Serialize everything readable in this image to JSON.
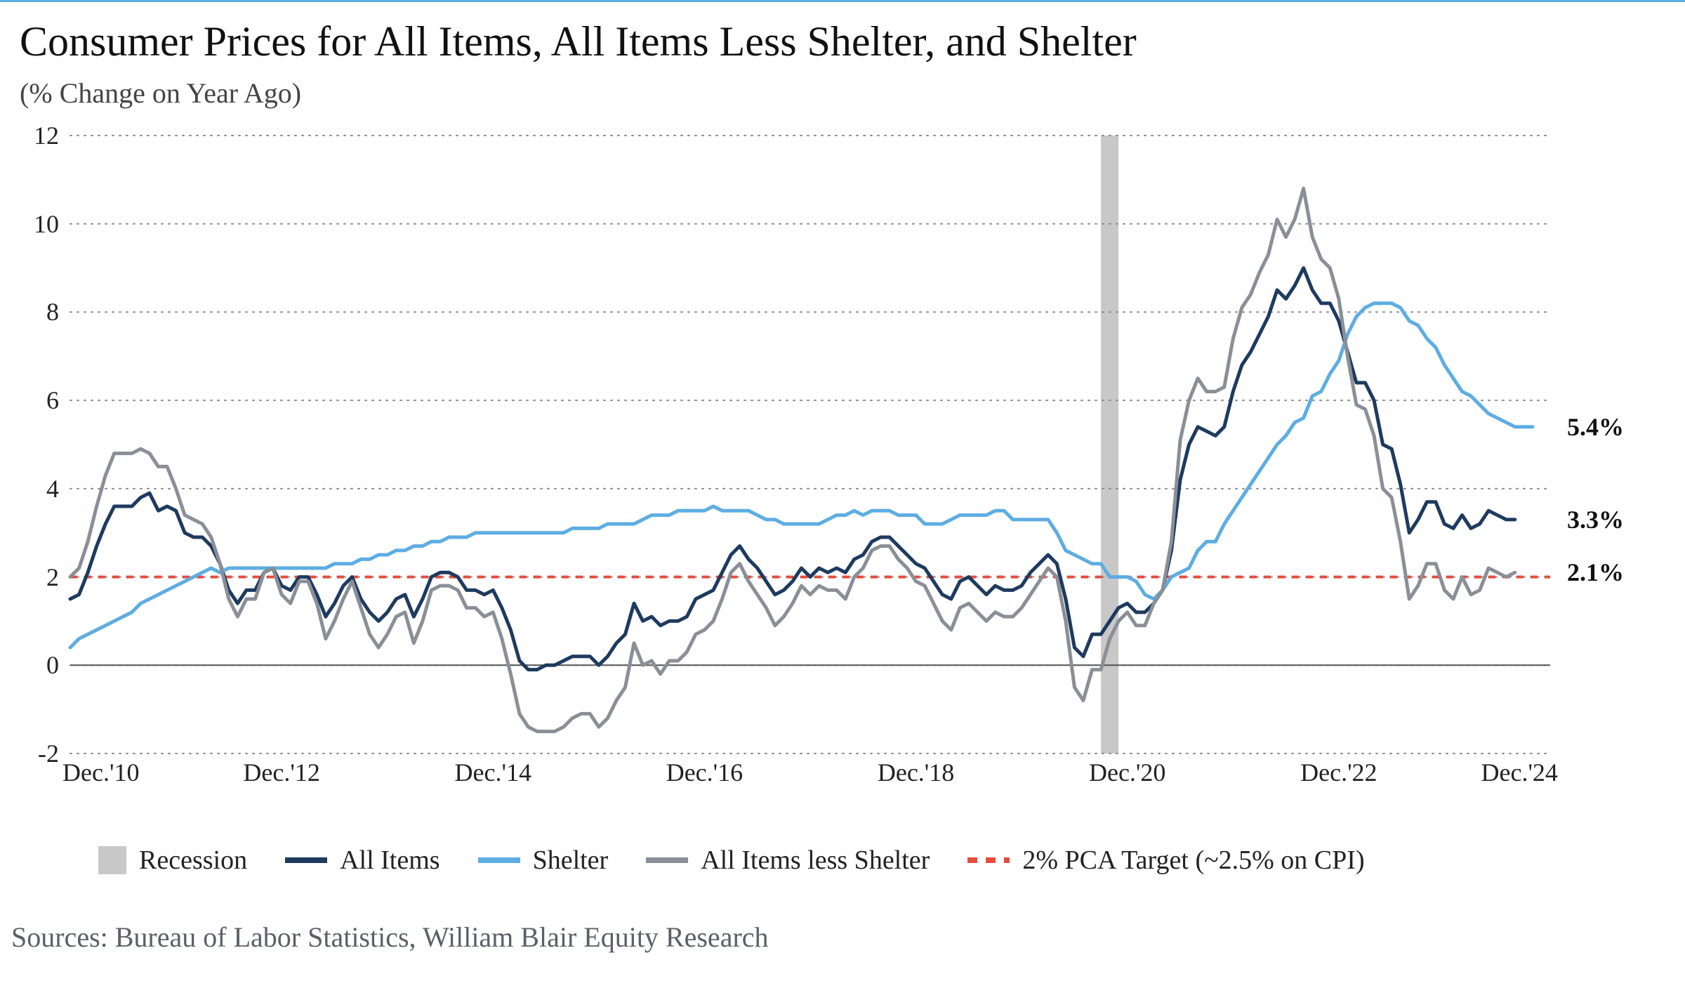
{
  "title": "Consumer Prices for All Items, All Items Less Shelter, and Shelter",
  "subtitle": "(% Change on Year Ago)",
  "sources": "Sources: Bureau of Labor Statistics, William Blair Equity Research",
  "chart": {
    "type": "line",
    "background_color": "#ffffff",
    "top_border_color": "#5dade2",
    "grid_color": "#888888",
    "grid_dash": "2,8",
    "axis_color": "#555555",
    "tick_fontsize": 36,
    "title_fontsize": 60,
    "subtitle_fontsize": 40,
    "sources_fontsize": 40,
    "label_fontsize": 36,
    "line_width": 5,
    "ylim": [
      -2,
      12
    ],
    "yticks": [
      -2,
      0,
      2,
      4,
      6,
      8,
      10,
      12
    ],
    "x_start_month": 0,
    "x_end_month": 168,
    "xticks": [
      {
        "month": 0,
        "label": "Dec.'10"
      },
      {
        "month": 24,
        "label": "Dec.'12"
      },
      {
        "month": 48,
        "label": "Dec.'14"
      },
      {
        "month": 72,
        "label": "Dec.'16"
      },
      {
        "month": 96,
        "label": "Dec.'18"
      },
      {
        "month": 120,
        "label": "Dec.'20"
      },
      {
        "month": 144,
        "label": "Dec.'22"
      },
      {
        "month": 168,
        "label": "Dec.'24"
      }
    ],
    "target_line": {
      "value": 2,
      "color": "#e74c3c",
      "dash": "10,10"
    },
    "recession": {
      "start_month": 117,
      "end_month": 119,
      "color": "#c8c8c8"
    },
    "end_labels": [
      {
        "value": 5.4,
        "text": "5.4%"
      },
      {
        "value": 3.3,
        "text": "3.3%"
      },
      {
        "value": 2.1,
        "text": "2.1%"
      }
    ],
    "series": [
      {
        "name": "all_items",
        "color": "#1e3a5f",
        "data": [
          1.5,
          1.6,
          2.1,
          2.7,
          3.2,
          3.6,
          3.6,
          3.6,
          3.8,
          3.9,
          3.5,
          3.6,
          3.5,
          3.0,
          2.9,
          2.9,
          2.7,
          2.3,
          1.7,
          1.4,
          1.7,
          1.7,
          2.1,
          2.2,
          1.8,
          1.7,
          2.0,
          2.0,
          1.6,
          1.1,
          1.4,
          1.8,
          2.0,
          1.5,
          1.2,
          1.0,
          1.2,
          1.5,
          1.6,
          1.1,
          1.5,
          2.0,
          2.1,
          2.1,
          2.0,
          1.7,
          1.7,
          1.6,
          1.7,
          1.3,
          0.8,
          0.1,
          -0.1,
          -0.1,
          0.0,
          0.0,
          0.1,
          0.2,
          0.2,
          0.2,
          0.0,
          0.2,
          0.5,
          0.7,
          1.4,
          1.0,
          1.1,
          0.9,
          1.0,
          1.0,
          1.1,
          1.5,
          1.6,
          1.7,
          2.1,
          2.5,
          2.7,
          2.4,
          2.2,
          1.9,
          1.6,
          1.7,
          1.9,
          2.2,
          2.0,
          2.2,
          2.1,
          2.2,
          2.1,
          2.4,
          2.5,
          2.8,
          2.9,
          2.9,
          2.7,
          2.5,
          2.3,
          2.2,
          1.9,
          1.6,
          1.5,
          1.9,
          2.0,
          1.8,
          1.6,
          1.8,
          1.7,
          1.7,
          1.8,
          2.1,
          2.3,
          2.5,
          2.3,
          1.5,
          0.4,
          0.2,
          0.7,
          0.7,
          1.0,
          1.3,
          1.4,
          1.2,
          1.2,
          1.4,
          1.7,
          2.6,
          4.2,
          5.0,
          5.4,
          5.3,
          5.2,
          5.4,
          6.2,
          6.8,
          7.1,
          7.5,
          7.9,
          8.5,
          8.3,
          8.6,
          9.0,
          8.5,
          8.2,
          8.2,
          7.8,
          7.1,
          6.4,
          6.4,
          6.0,
          5.0,
          4.9,
          4.1,
          3.0,
          3.3,
          3.7,
          3.7,
          3.2,
          3.1,
          3.4,
          3.1,
          3.2,
          3.5,
          3.4,
          3.3,
          3.3
        ]
      },
      {
        "name": "shelter",
        "color": "#5dade2",
        "data": [
          0.4,
          0.6,
          0.7,
          0.8,
          0.9,
          1.0,
          1.1,
          1.2,
          1.4,
          1.5,
          1.6,
          1.7,
          1.8,
          1.9,
          2.0,
          2.1,
          2.2,
          2.1,
          2.2,
          2.2,
          2.2,
          2.2,
          2.2,
          2.2,
          2.2,
          2.2,
          2.2,
          2.2,
          2.2,
          2.2,
          2.3,
          2.3,
          2.3,
          2.4,
          2.4,
          2.5,
          2.5,
          2.6,
          2.6,
          2.7,
          2.7,
          2.8,
          2.8,
          2.9,
          2.9,
          2.9,
          3.0,
          3.0,
          3.0,
          3.0,
          3.0,
          3.0,
          3.0,
          3.0,
          3.0,
          3.0,
          3.0,
          3.1,
          3.1,
          3.1,
          3.1,
          3.2,
          3.2,
          3.2,
          3.2,
          3.3,
          3.4,
          3.4,
          3.4,
          3.5,
          3.5,
          3.5,
          3.5,
          3.6,
          3.5,
          3.5,
          3.5,
          3.5,
          3.4,
          3.3,
          3.3,
          3.2,
          3.2,
          3.2,
          3.2,
          3.2,
          3.3,
          3.4,
          3.4,
          3.5,
          3.4,
          3.5,
          3.5,
          3.5,
          3.4,
          3.4,
          3.4,
          3.2,
          3.2,
          3.2,
          3.3,
          3.4,
          3.4,
          3.4,
          3.4,
          3.5,
          3.5,
          3.3,
          3.3,
          3.3,
          3.3,
          3.3,
          3.0,
          2.6,
          2.5,
          2.4,
          2.3,
          2.3,
          2.0,
          2.0,
          2.0,
          1.9,
          1.6,
          1.5,
          1.7,
          2.0,
          2.1,
          2.2,
          2.6,
          2.8,
          2.8,
          3.2,
          3.5,
          3.8,
          4.1,
          4.4,
          4.7,
          5.0,
          5.2,
          5.5,
          5.6,
          6.1,
          6.2,
          6.6,
          6.9,
          7.5,
          7.9,
          8.1,
          8.2,
          8.2,
          8.2,
          8.1,
          7.8,
          7.7,
          7.4,
          7.2,
          6.8,
          6.5,
          6.2,
          6.1,
          5.9,
          5.7,
          5.6,
          5.5,
          5.4,
          5.4,
          5.4
        ]
      },
      {
        "name": "all_items_less_shelter",
        "color": "#8a8f97",
        "data": [
          2.0,
          2.2,
          2.8,
          3.6,
          4.3,
          4.8,
          4.8,
          4.8,
          4.9,
          4.8,
          4.5,
          4.5,
          4.0,
          3.4,
          3.3,
          3.2,
          2.9,
          2.3,
          1.5,
          1.1,
          1.5,
          1.5,
          2.1,
          2.2,
          1.6,
          1.4,
          1.9,
          1.9,
          1.4,
          0.6,
          1.0,
          1.5,
          1.9,
          1.3,
          0.7,
          0.4,
          0.7,
          1.1,
          1.2,
          0.5,
          1.0,
          1.7,
          1.8,
          1.8,
          1.7,
          1.3,
          1.3,
          1.1,
          1.2,
          0.6,
          -0.2,
          -1.1,
          -1.4,
          -1.5,
          -1.5,
          -1.5,
          -1.4,
          -1.2,
          -1.1,
          -1.1,
          -1.4,
          -1.2,
          -0.8,
          -0.5,
          0.5,
          0.0,
          0.1,
          -0.2,
          0.1,
          0.1,
          0.3,
          0.7,
          0.8,
          1.0,
          1.5,
          2.1,
          2.3,
          1.9,
          1.6,
          1.3,
          0.9,
          1.1,
          1.4,
          1.8,
          1.6,
          1.8,
          1.7,
          1.7,
          1.5,
          2.0,
          2.2,
          2.6,
          2.7,
          2.7,
          2.4,
          2.2,
          1.9,
          1.8,
          1.4,
          1.0,
          0.8,
          1.3,
          1.4,
          1.2,
          1.0,
          1.2,
          1.1,
          1.1,
          1.3,
          1.6,
          1.9,
          2.2,
          2.0,
          1.0,
          -0.5,
          -0.8,
          -0.1,
          -0.1,
          0.6,
          1.0,
          1.2,
          0.9,
          0.9,
          1.4,
          1.7,
          2.8,
          5.1,
          6.0,
          6.5,
          6.2,
          6.2,
          6.3,
          7.4,
          8.1,
          8.4,
          8.9,
          9.3,
          10.1,
          9.7,
          10.1,
          10.8,
          9.7,
          9.2,
          9.0,
          8.3,
          7.0,
          5.9,
          5.8,
          5.2,
          4.0,
          3.8,
          2.8,
          1.5,
          1.8,
          2.3,
          2.3,
          1.7,
          1.5,
          2.0,
          1.6,
          1.7,
          2.2,
          2.1,
          2.0,
          2.1
        ]
      }
    ],
    "legend": [
      {
        "label": "Recession",
        "type": "rect",
        "color": "#c8c8c8"
      },
      {
        "label": "All Items",
        "type": "line",
        "color": "#1e3a5f"
      },
      {
        "label": "Shelter",
        "type": "line",
        "color": "#5dade2"
      },
      {
        "label": "All Items less Shelter",
        "type": "line",
        "color": "#8a8f97"
      },
      {
        "label": "2% PCA Target (~2.5% on CPI)",
        "type": "dash",
        "color": "#e74c3c"
      }
    ]
  }
}
